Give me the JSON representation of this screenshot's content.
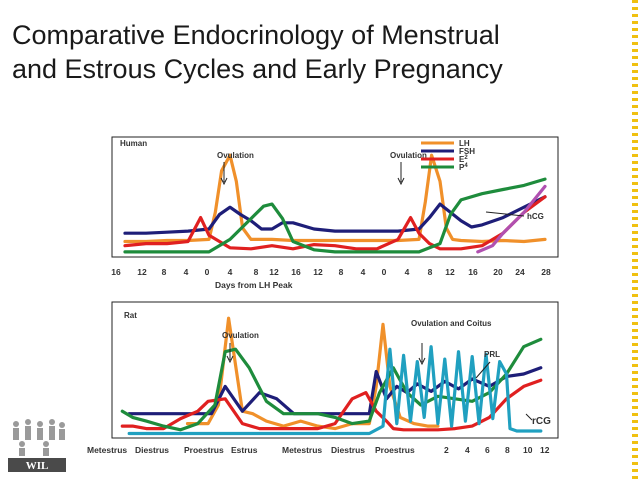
{
  "title_line1": "Comparative Endocrinology of Menstrual",
  "title_line2": "and Estrous Cycles and Early Pregnancy",
  "logo_text": "WIL",
  "colors": {
    "LH": "#f0902a",
    "FSH": "#1e1e78",
    "E2": "#e02020",
    "P4": "#1e8c3c",
    "hCG": "#b050b0",
    "PRL": "#20a0c0"
  },
  "chart_data": [
    {
      "type": "line",
      "panel": "Human",
      "xlabel": "Days from LH Peak",
      "x_tick_labels": [
        "16",
        "12",
        "8",
        "4",
        "0",
        "4",
        "8",
        "12",
        "16",
        "12",
        "8",
        "4",
        "0",
        "4",
        "8",
        "12",
        "16",
        "20",
        "24",
        "28"
      ],
      "annotations": [
        "Ovulation",
        "Ovulation",
        "hCG"
      ],
      "legend": [
        {
          "key": "LH",
          "label": "LH"
        },
        {
          "key": "FSH",
          "label": "FSH"
        },
        {
          "key": "E2",
          "label": "E",
          "sub": "2"
        },
        {
          "key": "P4",
          "label": "P",
          "sub": "4"
        }
      ],
      "ylim": [
        0,
        100
      ],
      "series": [
        {
          "name": "LH",
          "x": [
            0,
            1,
            2,
            3,
            4,
            4.3,
            4.6,
            5,
            5.3,
            5.6,
            6,
            7,
            8,
            9,
            10,
            11,
            12,
            13,
            14,
            14.3,
            14.6,
            15,
            15.3,
            15.6,
            16,
            17,
            18,
            19,
            20
          ],
          "y": [
            12,
            12,
            13,
            13,
            14,
            40,
            80,
            95,
            70,
            25,
            14,
            14,
            13,
            13,
            13,
            13,
            13,
            13,
            14,
            50,
            95,
            70,
            25,
            14,
            13,
            12,
            13,
            12,
            14
          ]
        },
        {
          "name": "FSH",
          "x": [
            0,
            1,
            2,
            3,
            4,
            4.5,
            5,
            5.5,
            6,
            6.5,
            7,
            7.5,
            8,
            9,
            10,
            11,
            12,
            13,
            14,
            14.5,
            15,
            15.5,
            16,
            16.5,
            17,
            18,
            19,
            20
          ],
          "y": [
            20,
            20,
            21,
            22,
            24,
            38,
            45,
            38,
            32,
            24,
            24,
            30,
            30,
            24,
            22,
            22,
            22,
            22,
            24,
            35,
            48,
            40,
            32,
            26,
            28,
            35,
            45,
            55
          ]
        },
        {
          "name": "E2",
          "x": [
            0,
            1,
            2,
            3,
            3.6,
            4,
            4.5,
            5,
            6,
            7,
            8,
            9,
            10,
            11,
            12,
            13,
            13.6,
            14,
            14.5,
            15,
            16,
            17,
            18,
            19,
            20
          ],
          "y": [
            8,
            10,
            10,
            12,
            35,
            18,
            12,
            6,
            5,
            8,
            5,
            9,
            8,
            5,
            5,
            14,
            35,
            20,
            10,
            5,
            5,
            8,
            20,
            40,
            55
          ]
        },
        {
          "name": "P4",
          "x": [
            0,
            1,
            2,
            3,
            4,
            5,
            6,
            6.6,
            7,
            7.5,
            8,
            9,
            10,
            11,
            12,
            13,
            14,
            15,
            15.5,
            16,
            17,
            18,
            19,
            20
          ],
          "y": [
            2,
            2,
            2,
            2,
            2,
            14,
            34,
            46,
            48,
            34,
            12,
            4,
            2,
            2,
            2,
            2,
            2,
            10,
            38,
            52,
            58,
            62,
            66,
            72
          ]
        },
        {
          "name": "hCG",
          "x": [
            16.8,
            17.5,
            18,
            19,
            20
          ],
          "y": [
            2,
            8,
            20,
            40,
            65
          ]
        }
      ]
    },
    {
      "type": "line",
      "panel": "Rat",
      "x_tick_labels": [
        "Metestrus",
        "Diestrus",
        "Proestrus",
        "Estrus",
        "Metestrus",
        "Diestrus",
        "Proestrus",
        "2",
        "4",
        "6",
        "8",
        "10",
        "12"
      ],
      "annotations": [
        "Ovulation",
        "Ovulation and Coitus",
        "PRL",
        "rCG"
      ],
      "ylim": [
        0,
        100
      ],
      "series": [
        {
          "name": "LH",
          "x": [
            2.2,
            2.5,
            2.8,
            3.1,
            3.4,
            3.8,
            4.1,
            4.5,
            5,
            5.5,
            6,
            6.5,
            7,
            7.5,
            7.7,
            7.9,
            8.1,
            8.4,
            8.8,
            9.2,
            9.5
          ],
          "y": [
            10,
            10,
            10,
            25,
            95,
            20,
            18,
            12,
            8,
            12,
            8,
            6,
            10,
            10,
            40,
            90,
            40,
            15,
            10,
            8,
            8
          ]
        },
        {
          "name": "FSH",
          "x": [
            0.5,
            1,
            1.5,
            2,
            2.5,
            2.9,
            3.3,
            3.8,
            4.3,
            4.8,
            5.3,
            5.8,
            6.3,
            6.8,
            7.2,
            7.5,
            7.7,
            8,
            8.3,
            8.6,
            8.9,
            9.3,
            9.7,
            10.1,
            10.5,
            11,
            11.5,
            12,
            12.5
          ],
          "y": [
            18,
            18,
            18,
            18,
            18,
            18,
            40,
            20,
            35,
            30,
            18,
            18,
            18,
            18,
            18,
            18,
            52,
            30,
            40,
            35,
            42,
            36,
            44,
            38,
            46,
            40,
            48,
            50,
            55
          ]
        },
        {
          "name": "E2",
          "x": [
            0.3,
            0.6,
            1,
            1.5,
            2,
            2.5,
            2.8,
            3.3,
            3.8,
            4.3,
            5,
            5.5,
            6,
            6.5,
            7,
            7.4,
            7.7,
            8,
            8.2,
            8.5,
            9,
            9.5,
            10,
            10.5,
            11,
            11.5,
            12,
            12.5
          ],
          "y": [
            8,
            8,
            6,
            6,
            14,
            20,
            28,
            30,
            10,
            6,
            6,
            6,
            6,
            10,
            30,
            35,
            20,
            12,
            6,
            5,
            5,
            5,
            6,
            8,
            15,
            30,
            40,
            45
          ]
        },
        {
          "name": "P4",
          "x": [
            0.3,
            0.6,
            1,
            1.5,
            2,
            2.5,
            3,
            3.3,
            3.6,
            4,
            4.5,
            5,
            5.5,
            6,
            6.5,
            7,
            7.5,
            7.8,
            8.2,
            8.6,
            9,
            9.5,
            10,
            10.5,
            11,
            11.5,
            12,
            12.5
          ],
          "y": [
            20,
            15,
            12,
            8,
            5,
            10,
            25,
            68,
            70,
            55,
            28,
            18,
            18,
            18,
            15,
            10,
            12,
            35,
            55,
            35,
            25,
            32,
            30,
            28,
            35,
            50,
            72,
            78
          ]
        },
        {
          "name": "PRL",
          "x": [
            0.5,
            1,
            2,
            3,
            4,
            5,
            6,
            7,
            7.5,
            7.9,
            8.1,
            8.3,
            8.5,
            8.7,
            8.9,
            9.1,
            9.3,
            9.5,
            9.7,
            9.9,
            10.1,
            10.3,
            10.5,
            10.7,
            10.9,
            11.1,
            11.3,
            11.5,
            11.6,
            11.8,
            12,
            12.5
          ],
          "y": [
            2,
            2,
            2,
            2,
            2,
            2,
            2,
            2,
            2,
            8,
            70,
            10,
            65,
            12,
            60,
            15,
            72,
            10,
            62,
            8,
            68,
            12,
            64,
            10,
            66,
            14,
            60,
            50,
            6,
            4,
            4,
            4
          ]
        },
        {
          "name": "rCG",
          "x": [
            11,
            11.5,
            12,
            12.5
          ],
          "y": [
            2,
            12,
            28,
            45
          ]
        }
      ]
    }
  ]
}
